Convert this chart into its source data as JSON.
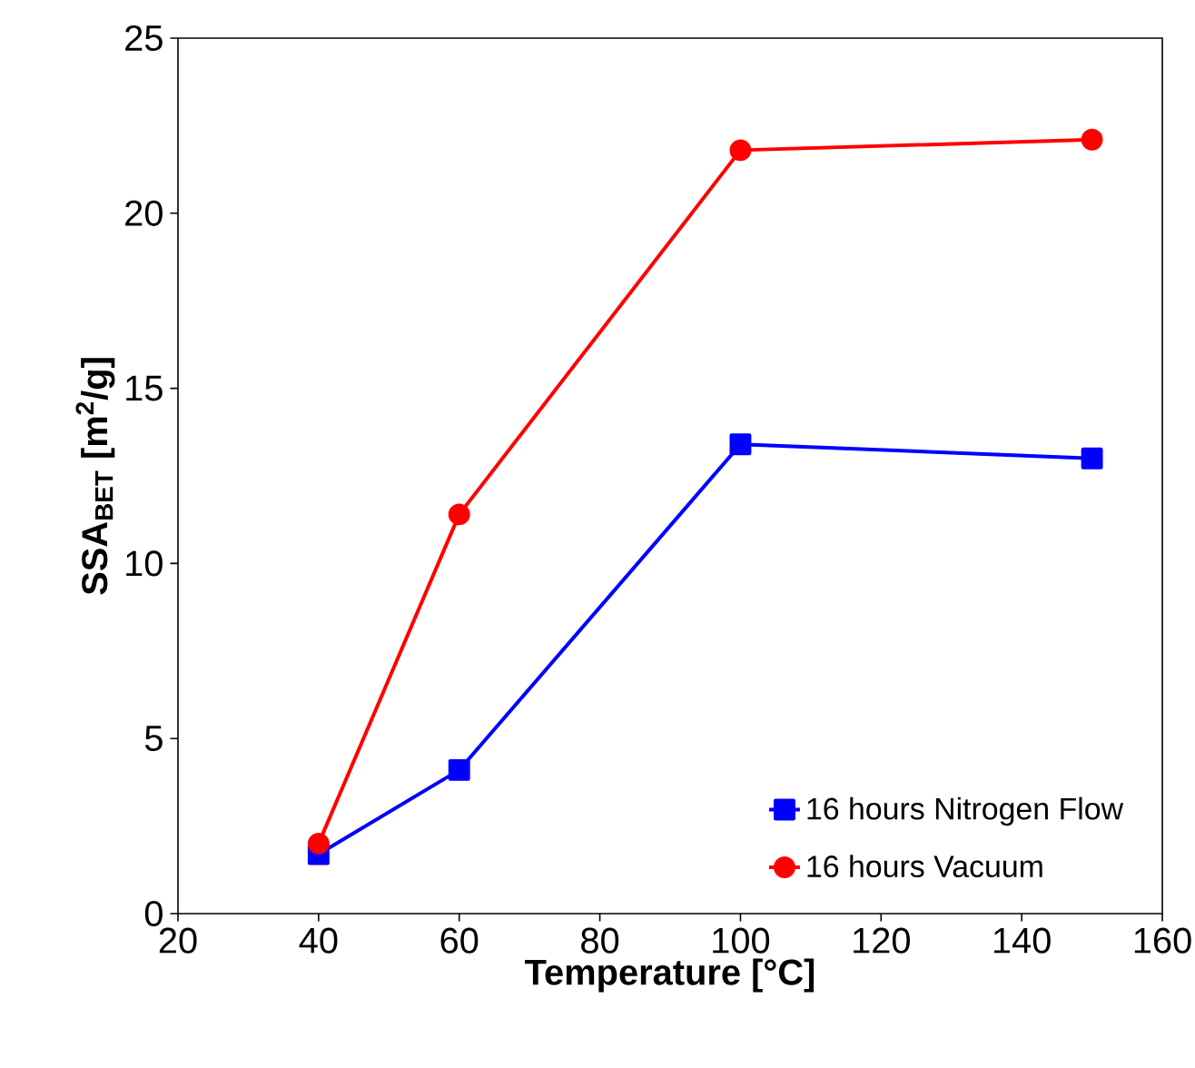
{
  "chart_data": {
    "type": "line",
    "xlabel": "Temperature [°C]",
    "ylabel": "SSA$_{BET}$ [m$^{2}$/g]",
    "x": [
      40,
      60,
      100,
      150
    ],
    "series": [
      {
        "name": "16 hours Nitrogen Flow",
        "color": "#0000ff",
        "marker": "square",
        "values": [
          1.7,
          4.1,
          13.4,
          13.0
        ]
      },
      {
        "name": "16 hours Vacuum",
        "color": "#ff0000",
        "marker": "circle",
        "values": [
          2.0,
          11.4,
          21.8,
          22.1
        ]
      }
    ],
    "xlim": [
      20,
      160
    ],
    "ylim": [
      0,
      25
    ],
    "xticks": [
      20,
      40,
      60,
      80,
      100,
      120,
      140,
      160
    ],
    "yticks": [
      0,
      5,
      10,
      15,
      20,
      25
    ],
    "grid": false,
    "legend": "bottom right",
    "line_style": "solid"
  }
}
